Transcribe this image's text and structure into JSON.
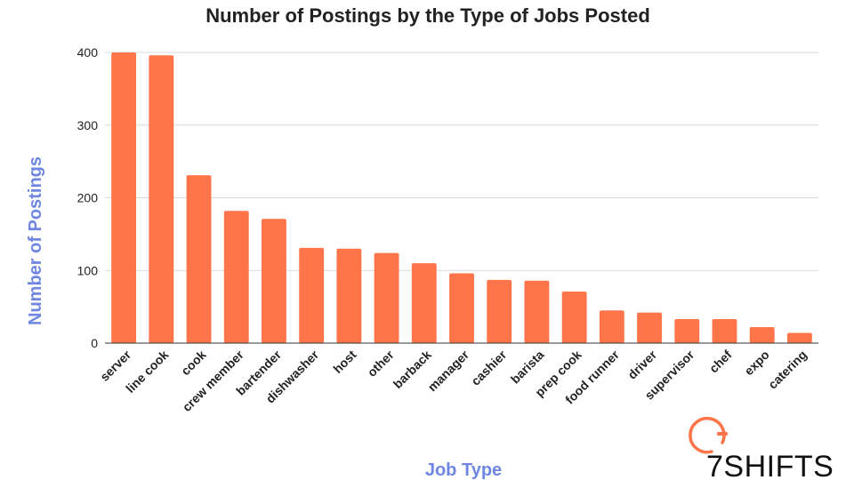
{
  "chart_data": {
    "type": "bar",
    "title": "Number of Postings by the Type of Jobs Posted",
    "xlabel": "Job Type",
    "ylabel": "Number of Postings",
    "ylim": [
      0,
      400
    ],
    "yticks": [
      0,
      100,
      200,
      300,
      400
    ],
    "grid": true,
    "categories": [
      "server",
      "line cook",
      "cook",
      "crew member",
      "bartender",
      "dishwasher",
      "host",
      "other",
      "barback",
      "manager",
      "cashier",
      "barista",
      "prep cook",
      "food runner",
      "driver",
      "supervisor",
      "chef",
      "expo",
      "catering"
    ],
    "values": [
      400,
      396,
      231,
      182,
      171,
      131,
      130,
      124,
      110,
      96,
      87,
      86,
      71,
      45,
      42,
      33,
      33,
      22,
      14
    ],
    "colors": {
      "bar": "#ff7549",
      "axis_title": "#6f87e2",
      "text": "#222222"
    }
  },
  "logo": {
    "text": "7SHIFTS",
    "icon": "stopwatch-icon"
  }
}
